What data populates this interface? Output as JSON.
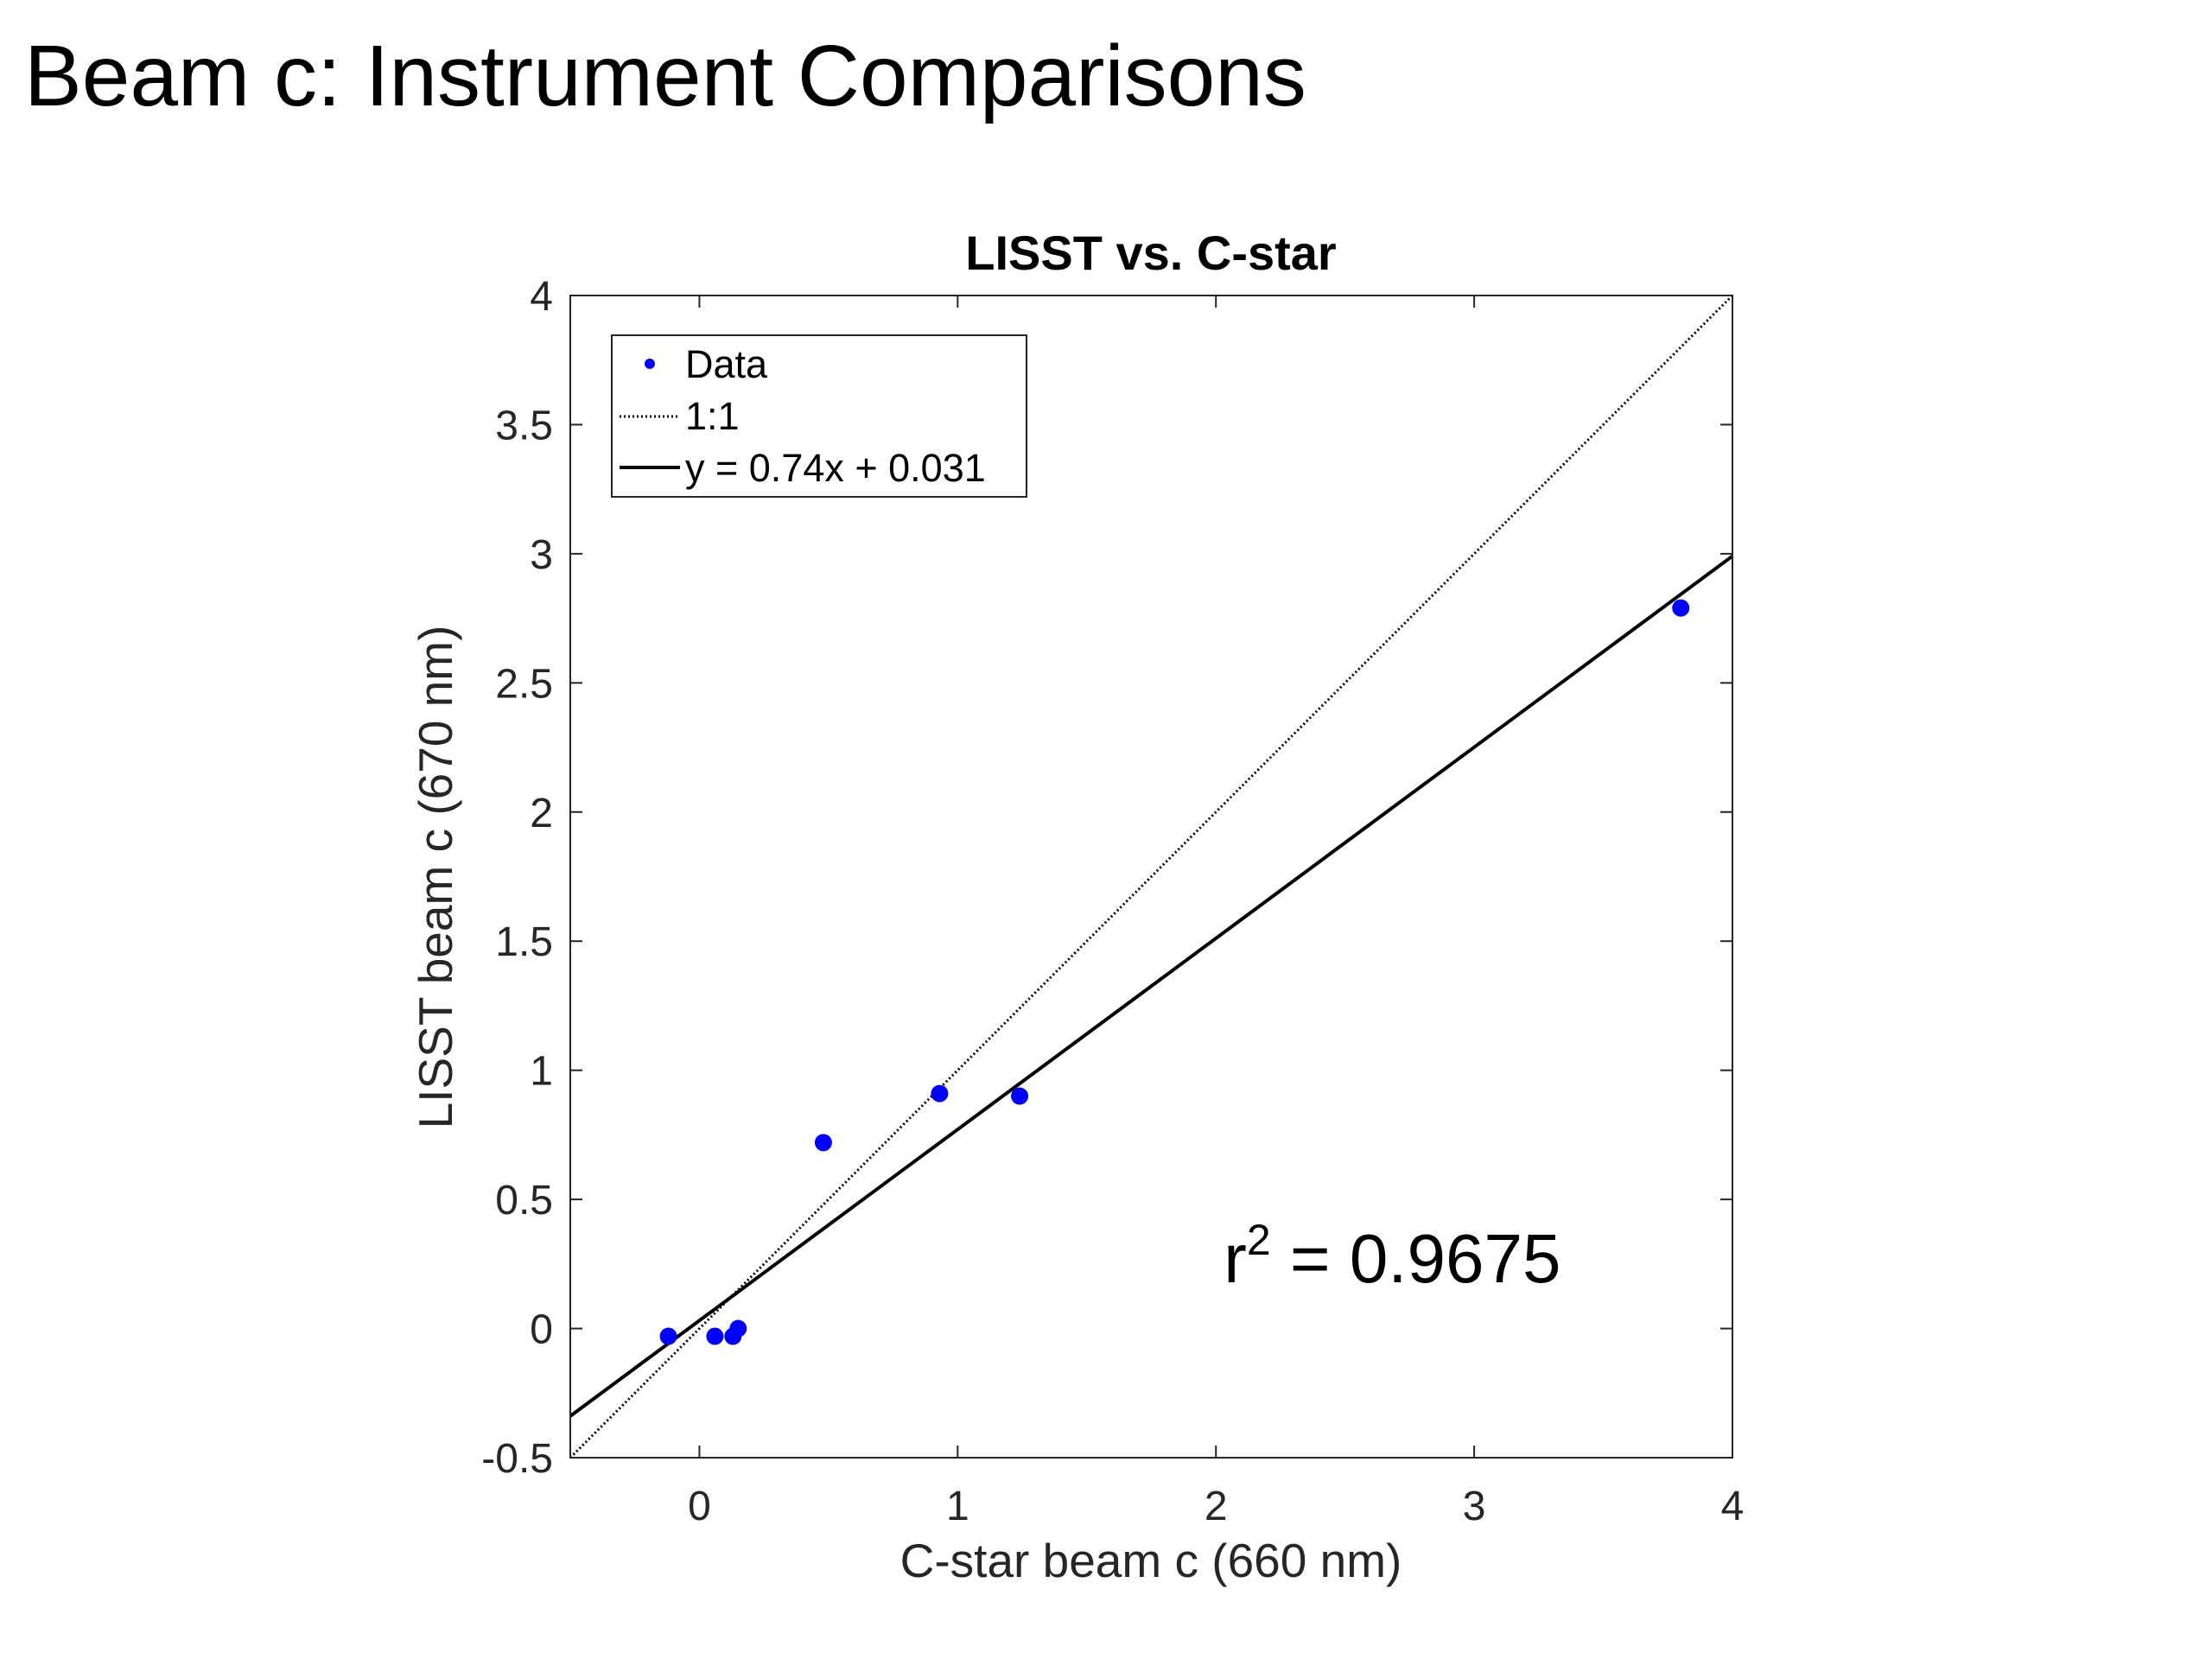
{
  "page": {
    "title": "Beam c: Instrument Comparisons"
  },
  "chart_data": {
    "type": "scatter",
    "title": "LISST vs. C-star",
    "xlabel": "C-star beam c (660 nm)",
    "ylabel": "LISST beam c (670 nm)",
    "xlim": [
      -0.5,
      4
    ],
    "ylim": [
      -0.5,
      4
    ],
    "xticks": [
      0,
      1,
      2,
      3,
      4
    ],
    "xtick_labels": [
      "0",
      "1",
      "2",
      "3",
      "4"
    ],
    "yticks": [
      -0.5,
      0,
      0.5,
      1,
      1.5,
      2,
      2.5,
      3,
      3.5,
      4
    ],
    "ytick_labels": [
      "-0.5",
      "0",
      "0.5",
      "1",
      "1.5",
      "2",
      "2.5",
      "3",
      "3.5",
      "4"
    ],
    "grid": false,
    "legend_position": "top-left",
    "series": [
      {
        "name": "Data",
        "kind": "scatter",
        "color": "#0000ff",
        "points": [
          {
            "x": -0.12,
            "y": -0.03
          },
          {
            "x": 0.06,
            "y": -0.03
          },
          {
            "x": 0.13,
            "y": -0.03
          },
          {
            "x": 0.15,
            "y": 0.0
          },
          {
            "x": 0.48,
            "y": 0.72
          },
          {
            "x": 0.93,
            "y": 0.91
          },
          {
            "x": 1.24,
            "y": 0.9
          },
          {
            "x": 3.8,
            "y": 2.79
          }
        ]
      },
      {
        "name": "1:1",
        "kind": "line",
        "style": "dotted",
        "color": "#000000",
        "points": [
          {
            "x": -0.5,
            "y": -0.5
          },
          {
            "x": 4,
            "y": 4
          }
        ]
      },
      {
        "name": "y = 0.74x + 0.031",
        "kind": "line",
        "style": "solid",
        "color": "#000000",
        "points": [
          {
            "x": -0.5,
            "y": -0.339
          },
          {
            "x": 4,
            "y": 2.991
          }
        ]
      }
    ],
    "annotations": [
      {
        "text_base": "r",
        "text_sup": "2",
        "text_rest": " = 0.9675",
        "x": 2.03,
        "y": 0.18
      }
    ]
  }
}
